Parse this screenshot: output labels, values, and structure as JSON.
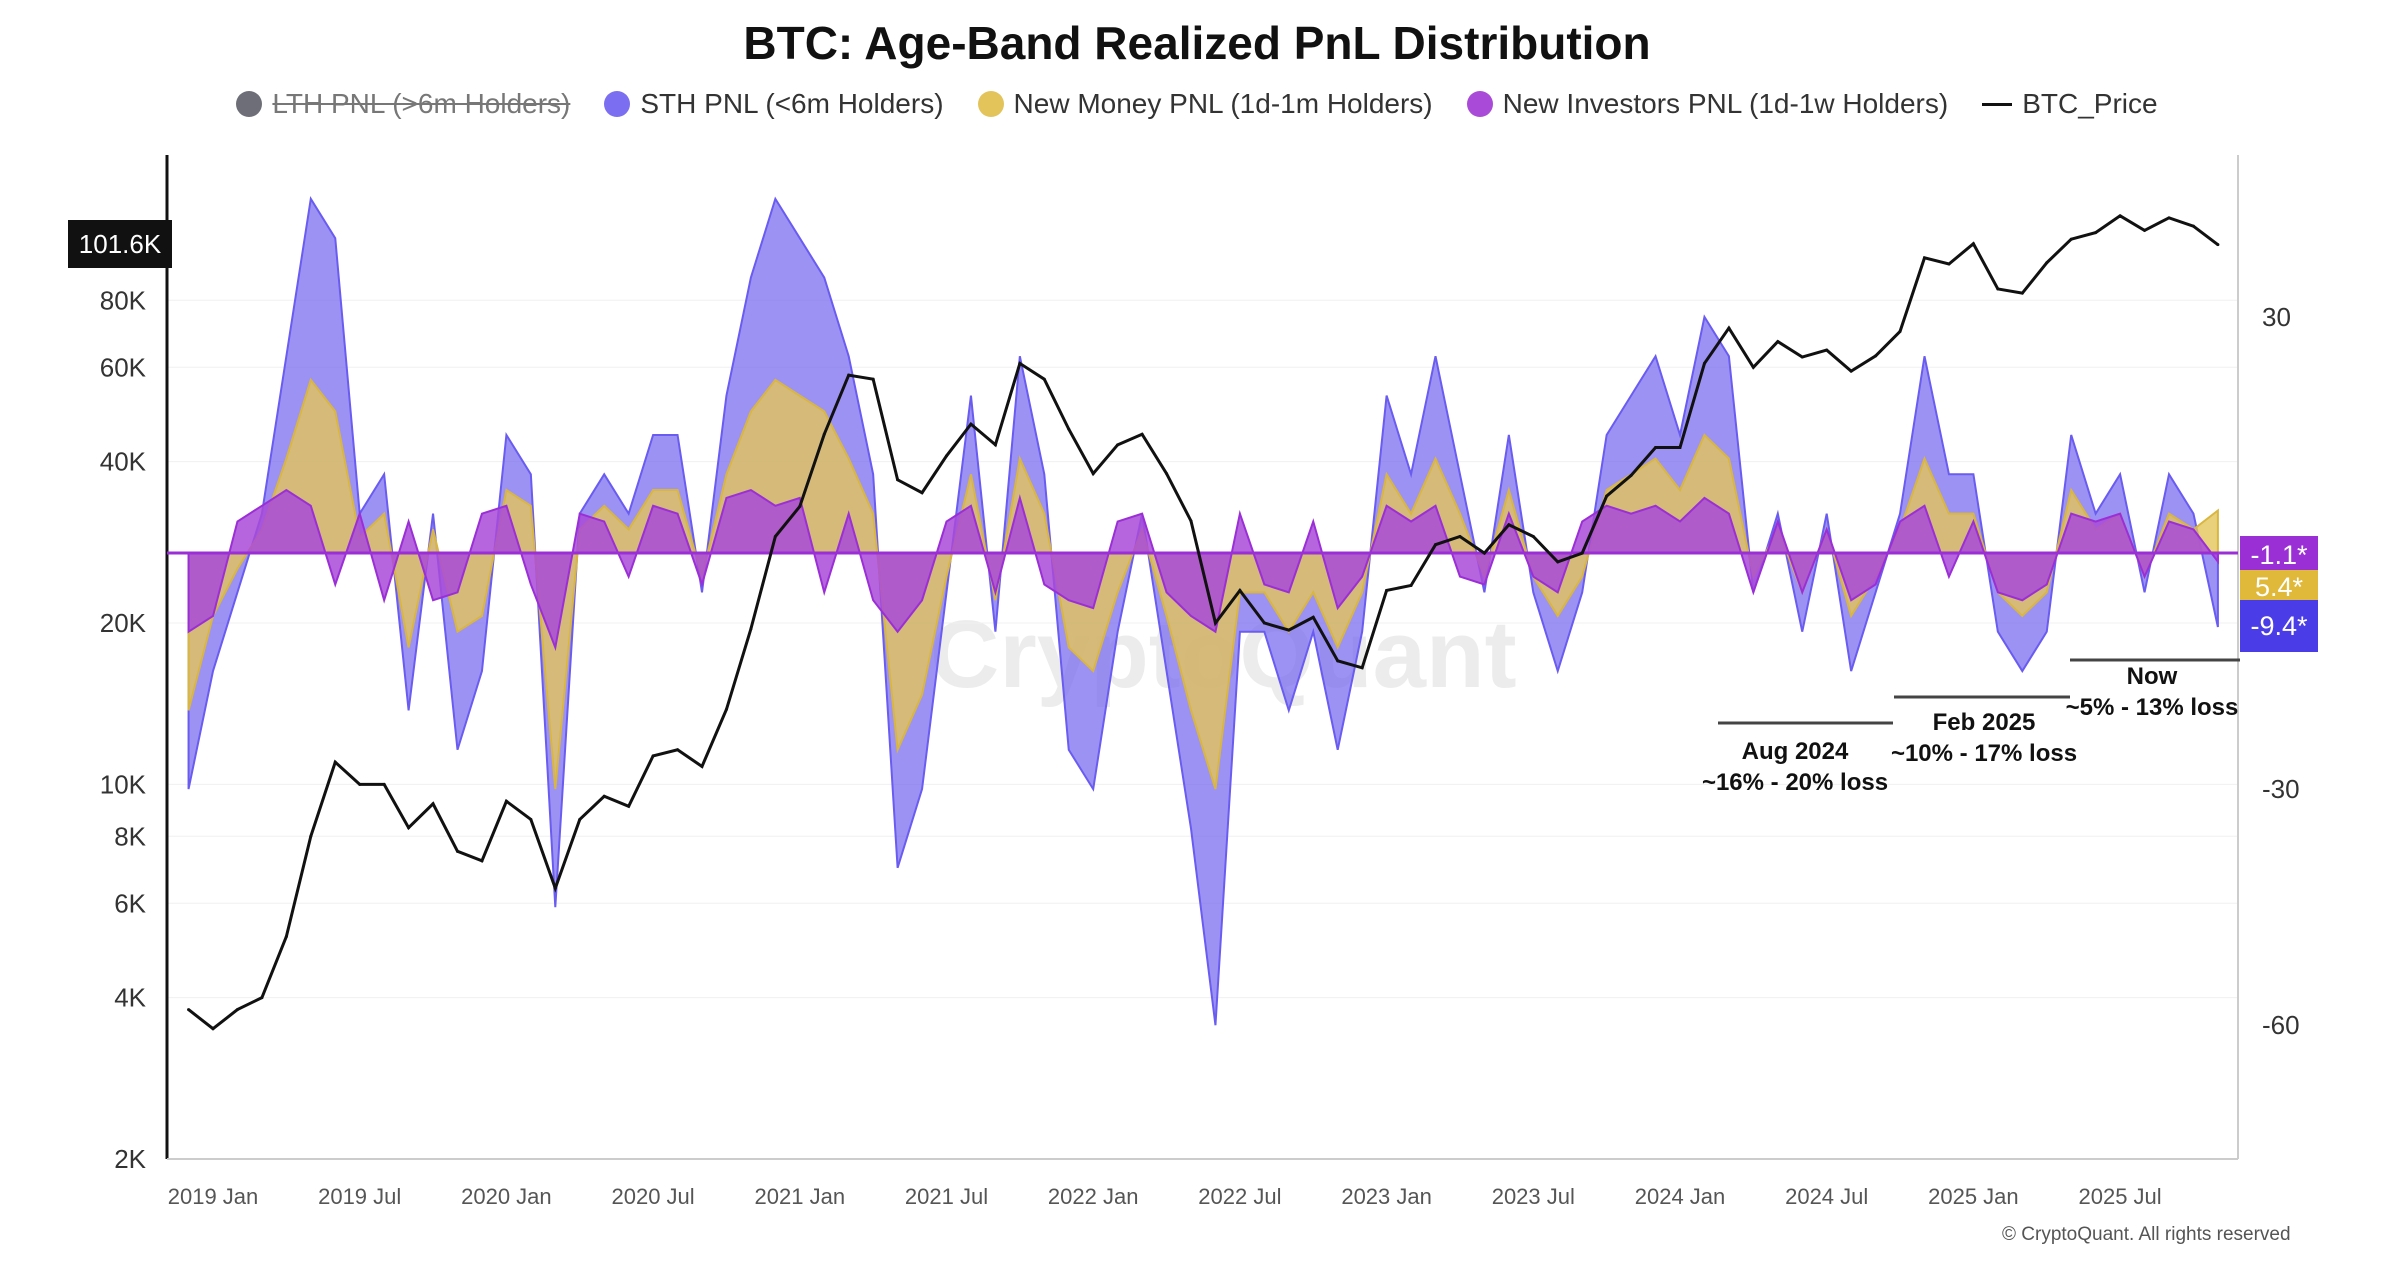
{
  "chart_data": {
    "type": "area",
    "title": "BTC: Age-Band Realized PnL Distribution",
    "legend": [
      {
        "label": "LTH PNL (>6m Holders)",
        "color": "#6e6e78",
        "hidden": true
      },
      {
        "label": "STH PNL (<6m Holders)",
        "color": "#7b6ef0"
      },
      {
        "label": "New Money PNL (1d-1m Holders)",
        "color": "#e3c45a"
      },
      {
        "label": "New Investors PNL (1d-1w Holders)",
        "color": "#a94ad8"
      },
      {
        "label": "BTC_Price",
        "color": "#111111",
        "type": "line"
      }
    ],
    "legend_placement": "top",
    "x_ticks": [
      "2019 Jan",
      "2019 Jul",
      "2020 Jan",
      "2020 Jul",
      "2021 Jan",
      "2021 Jul",
      "2022 Jan",
      "2022 Jul",
      "2023 Jan",
      "2023 Jul",
      "2024 Jan",
      "2024 Jul",
      "2025 Jan",
      "2025 Jul"
    ],
    "y_left": {
      "scale": "log",
      "ticks": [
        "2K",
        "4K",
        "6K",
        "8K",
        "10K",
        "20K",
        "40K",
        "60K",
        "80K"
      ],
      "range": [
        2000,
        150000
      ]
    },
    "y_right": {
      "ticks": [
        "30",
        "-30",
        "-60"
      ],
      "range": [
        -77,
        50
      ]
    },
    "grid": true,
    "x": [
      "2018-12",
      "2019-01",
      "2019-02",
      "2019-03",
      "2019-04",
      "2019-05",
      "2019-06",
      "2019-07",
      "2019-08",
      "2019-09",
      "2019-10",
      "2019-11",
      "2019-12",
      "2020-01",
      "2020-02",
      "2020-03",
      "2020-04",
      "2020-05",
      "2020-06",
      "2020-07",
      "2020-08",
      "2020-09",
      "2020-10",
      "2020-11",
      "2020-12",
      "2021-01",
      "2021-02",
      "2021-03",
      "2021-04",
      "2021-05",
      "2021-06",
      "2021-07",
      "2021-08",
      "2021-09",
      "2021-10",
      "2021-11",
      "2021-12",
      "2022-01",
      "2022-02",
      "2022-03",
      "2022-04",
      "2022-05",
      "2022-06",
      "2022-07",
      "2022-08",
      "2022-09",
      "2022-10",
      "2022-11",
      "2022-12",
      "2023-01",
      "2023-02",
      "2023-03",
      "2023-04",
      "2023-05",
      "2023-06",
      "2023-07",
      "2023-08",
      "2023-09",
      "2023-10",
      "2023-11",
      "2023-12",
      "2024-01",
      "2024-02",
      "2024-03",
      "2024-04",
      "2024-05",
      "2024-06",
      "2024-07",
      "2024-08",
      "2024-09",
      "2024-10",
      "2024-11",
      "2024-12",
      "2025-01",
      "2025-02",
      "2025-03",
      "2025-04",
      "2025-05",
      "2025-06",
      "2025-07",
      "2025-08",
      "2025-09",
      "2025-10",
      "2025-11"
    ],
    "series": [
      {
        "name": "STH PNL (<6m Holders)",
        "axis": "right",
        "values": [
          -30,
          -15,
          -5,
          5,
          25,
          45,
          40,
          5,
          10,
          -20,
          5,
          -25,
          -15,
          15,
          10,
          -45,
          5,
          10,
          5,
          15,
          15,
          -5,
          20,
          35,
          45,
          40,
          35,
          25,
          10,
          -40,
          -30,
          -5,
          20,
          -10,
          25,
          10,
          -25,
          -30,
          -10,
          5,
          -15,
          -35,
          -60,
          -10,
          -10,
          -20,
          -10,
          -25,
          -10,
          20,
          10,
          25,
          10,
          -5,
          15,
          -5,
          -15,
          -5,
          15,
          20,
          25,
          15,
          30,
          25,
          -5,
          5,
          -10,
          5,
          -15,
          -5,
          5,
          25,
          10,
          10,
          -10,
          -15,
          -10,
          15,
          5,
          10,
          -5,
          10,
          5,
          -9.4
        ]
      },
      {
        "name": "New Money PNL (1d-1m Holders)",
        "axis": "right",
        "values": [
          -20,
          -8,
          -2,
          3,
          12,
          22,
          18,
          2,
          5,
          -12,
          3,
          -10,
          -8,
          8,
          6,
          -30,
          3,
          6,
          3,
          8,
          8,
          -3,
          10,
          18,
          22,
          20,
          18,
          12,
          5,
          -25,
          -18,
          -3,
          10,
          -6,
          12,
          5,
          -12,
          -15,
          -5,
          3,
          -8,
          -20,
          -30,
          -5,
          -5,
          -10,
          -5,
          -12,
          -5,
          10,
          5,
          12,
          5,
          -3,
          8,
          -3,
          -8,
          -3,
          8,
          10,
          12,
          8,
          15,
          12,
          -3,
          3,
          -5,
          3,
          -8,
          -3,
          3,
          12,
          5,
          5,
          -5,
          -8,
          -5,
          8,
          3,
          5,
          -3,
          5,
          3,
          5.4
        ]
      },
      {
        "name": "New Investors PNL (1d-1w Holders)",
        "axis": "right",
        "values": [
          -10,
          -8,
          4,
          6,
          8,
          6,
          -4,
          5,
          -6,
          4,
          -6,
          -5,
          5,
          6,
          -4,
          -12,
          5,
          4,
          -3,
          6,
          5,
          -4,
          7,
          8,
          6,
          7,
          -5,
          5,
          -6,
          -10,
          -6,
          4,
          6,
          -5,
          7,
          -4,
          -6,
          -7,
          4,
          5,
          -5,
          -8,
          -10,
          5,
          -4,
          -5,
          4,
          -7,
          -3,
          6,
          4,
          6,
          -3,
          -4,
          5,
          -3,
          -5,
          4,
          6,
          5,
          6,
          4,
          7,
          5,
          -5,
          4,
          -5,
          3,
          -6,
          -4,
          4,
          6,
          -3,
          4,
          -5,
          -6,
          -4,
          5,
          4,
          5,
          -3,
          4,
          3,
          -1.1
        ]
      },
      {
        "name": "BTC_Price",
        "axis": "left",
        "values": [
          3800,
          3500,
          3800,
          4000,
          5200,
          8000,
          11000,
          10000,
          10000,
          8300,
          9200,
          7500,
          7200,
          9300,
          8600,
          6400,
          8600,
          9500,
          9100,
          11300,
          11600,
          10800,
          13800,
          19500,
          29000,
          33000,
          45000,
          58000,
          57000,
          37000,
          35000,
          41000,
          47000,
          43000,
          61000,
          57000,
          46000,
          38000,
          43000,
          45000,
          38000,
          31000,
          20000,
          23000,
          20000,
          19400,
          20500,
          17000,
          16500,
          23000,
          23500,
          28000,
          29000,
          27000,
          30500,
          29000,
          26000,
          27000,
          34500,
          37700,
          42500,
          42500,
          61000,
          71000,
          60000,
          67000,
          62700,
          64600,
          59000,
          63000,
          70000,
          96000,
          93500,
          102000,
          84000,
          82500,
          94000,
          104000,
          107000,
          115000,
          108000,
          114000,
          110000,
          101600
        ]
      }
    ],
    "current_values": {
      "price": "101.6K",
      "new_investors": "-1.1*",
      "new_money": "5.4*",
      "sth": "-9.4*"
    },
    "annotations": [
      {
        "title": "Aug 2024",
        "text": "~16% - 20% loss"
      },
      {
        "title": "Feb 2025",
        "text": "~10% - 17% loss"
      },
      {
        "title": "Now",
        "text": "~5% - 13% loss"
      }
    ]
  },
  "watermark": "CryptoQuant",
  "copyright": "© CryptoQuant. All rights reserved"
}
